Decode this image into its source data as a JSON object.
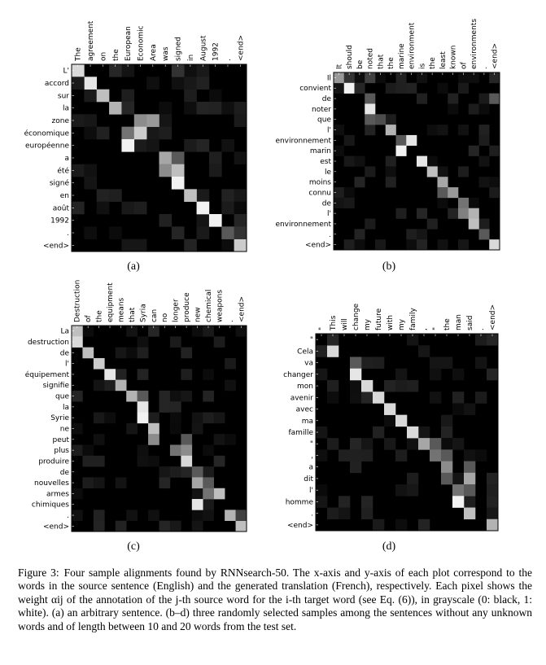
{
  "chart_data": [
    {
      "type": "heatmap",
      "label": "(a)",
      "x": [
        "The",
        "agreement",
        "on",
        "the",
        "European",
        "Economic",
        "Area",
        "was",
        "signed",
        "in",
        "August",
        "1992",
        ".",
        "<end>"
      ],
      "y": [
        "L'",
        "accord",
        "sur",
        "la",
        "zone",
        "économique",
        "européenne",
        "a",
        "été",
        "signé",
        "en",
        "août",
        "1992",
        ".",
        "<end>"
      ],
      "cells": [
        [
          0,
          0,
          0.85
        ],
        [
          1,
          1,
          0.9
        ],
        [
          2,
          2,
          0.75
        ],
        [
          3,
          3,
          0.7
        ],
        [
          3,
          4,
          0.15
        ],
        [
          4,
          5,
          0.55
        ],
        [
          4,
          6,
          0.6
        ],
        [
          5,
          4,
          0.45
        ],
        [
          5,
          5,
          0.8
        ],
        [
          6,
          4,
          0.95
        ],
        [
          7,
          7,
          0.65
        ],
        [
          7,
          8,
          0.35
        ],
        [
          8,
          7,
          0.55
        ],
        [
          8,
          8,
          0.75
        ],
        [
          9,
          8,
          0.95
        ],
        [
          10,
          9,
          0.75
        ],
        [
          11,
          10,
          0.95
        ],
        [
          12,
          11,
          0.95
        ],
        [
          13,
          12,
          0.35
        ],
        [
          14,
          13,
          0.8
        ],
        [
          13,
          13,
          0.2
        ],
        [
          0,
          3,
          0.15
        ],
        [
          0,
          8,
          0.2
        ],
        [
          1,
          0,
          0.1
        ]
      ],
      "value_range": [
        0,
        1
      ]
    },
    {
      "type": "heatmap",
      "label": "(b)",
      "x": [
        "It",
        "should",
        "be",
        "noted",
        "that",
        "the",
        "marine",
        "environment",
        "is",
        "the",
        "least",
        "known",
        "of",
        "environments",
        ".",
        "<end>"
      ],
      "y": [
        "Il",
        "convient",
        "de",
        "noter",
        "que",
        "l'",
        "environnement",
        "marin",
        "est",
        "le",
        "moins",
        "connu",
        "de",
        "l'",
        "environnement",
        ".",
        "<end>"
      ],
      "cells": [
        [
          0,
          0,
          0.6
        ],
        [
          0,
          1,
          0.2
        ],
        [
          1,
          1,
          0.95
        ],
        [
          1,
          2,
          0.15
        ],
        [
          2,
          3,
          0.35
        ],
        [
          3,
          3,
          0.9
        ],
        [
          4,
          3,
          0.35
        ],
        [
          4,
          4,
          0.3
        ],
        [
          5,
          5,
          0.7
        ],
        [
          6,
          6,
          0.35
        ],
        [
          6,
          7,
          0.9
        ],
        [
          7,
          6,
          0.95
        ],
        [
          8,
          8,
          0.9
        ],
        [
          9,
          9,
          0.75
        ],
        [
          10,
          10,
          0.65
        ],
        [
          11,
          10,
          0.35
        ],
        [
          11,
          11,
          0.6
        ],
        [
          12,
          12,
          0.45
        ],
        [
          13,
          12,
          0.5
        ],
        [
          13,
          13,
          0.7
        ],
        [
          14,
          13,
          0.75
        ],
        [
          15,
          14,
          0.35
        ],
        [
          16,
          15,
          0.85
        ],
        [
          0,
          3,
          0.25
        ],
        [
          2,
          15,
          0.35
        ],
        [
          0,
          15,
          0.15
        ]
      ],
      "value_range": [
        0,
        1
      ]
    },
    {
      "type": "heatmap",
      "label": "(c)",
      "x": [
        "Destruction",
        "of",
        "the",
        "equipment",
        "means",
        "that",
        "Syria",
        "can",
        "no",
        "longer",
        "produce",
        "new",
        "chemical",
        "weapons",
        ".",
        "<end>"
      ],
      "y": [
        "La",
        "destruction",
        "de",
        "l'",
        "équipement",
        "signifie",
        "que",
        "la",
        "Syrie",
        "ne",
        "peut",
        "plus",
        "produire",
        "de",
        "nouvelles",
        "armes",
        "chimiques",
        ".",
        "<end>"
      ],
      "cells": [
        [
          0,
          0,
          0.75
        ],
        [
          1,
          0,
          0.85
        ],
        [
          2,
          1,
          0.75
        ],
        [
          3,
          2,
          0.8
        ],
        [
          4,
          3,
          0.9
        ],
        [
          5,
          4,
          0.7
        ],
        [
          6,
          5,
          0.7
        ],
        [
          6,
          6,
          0.35
        ],
        [
          7,
          6,
          0.9
        ],
        [
          8,
          6,
          0.95
        ],
        [
          9,
          7,
          0.75
        ],
        [
          10,
          7,
          0.55
        ],
        [
          10,
          10,
          0.35
        ],
        [
          11,
          9,
          0.45
        ],
        [
          11,
          10,
          0.55
        ],
        [
          12,
          10,
          0.85
        ],
        [
          13,
          11,
          0.35
        ],
        [
          14,
          11,
          0.65
        ],
        [
          14,
          12,
          0.35
        ],
        [
          15,
          13,
          0.75
        ],
        [
          15,
          12,
          0.45
        ],
        [
          16,
          11,
          0.9
        ],
        [
          17,
          14,
          0.7
        ],
        [
          18,
          15,
          0.75
        ],
        [
          17,
          15,
          0.25
        ]
      ],
      "value_range": [
        0,
        1
      ]
    },
    {
      "type": "heatmap",
      "label": "(d)",
      "x": [
        "\"",
        "This",
        "will",
        "change",
        "my",
        "future",
        "with",
        "my",
        "family",
        ",",
        "\"",
        "the",
        "man",
        "said",
        ".",
        "<end>"
      ],
      "y": [
        "\"",
        "Cela",
        "va",
        "changer",
        "mon",
        "avenir",
        "avec",
        "ma",
        "famille",
        "\"",
        ",",
        "a",
        "dit",
        "l'",
        "homme",
        ".",
        "<end>"
      ],
      "cells": [
        [
          1,
          1,
          0.85
        ],
        [
          2,
          3,
          0.35
        ],
        [
          3,
          3,
          0.9
        ],
        [
          4,
          4,
          0.85
        ],
        [
          5,
          5,
          0.85
        ],
        [
          6,
          6,
          0.85
        ],
        [
          7,
          7,
          0.85
        ],
        [
          8,
          8,
          0.85
        ],
        [
          9,
          9,
          0.65
        ],
        [
          9,
          10,
          0.35
        ],
        [
          10,
          10,
          0.45
        ],
        [
          10,
          11,
          0.35
        ],
        [
          11,
          11,
          0.55
        ],
        [
          11,
          13,
          0.35
        ],
        [
          12,
          13,
          0.65
        ],
        [
          12,
          11,
          0.35
        ],
        [
          13,
          12,
          0.45
        ],
        [
          13,
          13,
          0.35
        ],
        [
          14,
          12,
          0.95
        ],
        [
          15,
          13,
          0.75
        ],
        [
          16,
          15,
          0.7
        ],
        [
          0,
          1,
          0.15
        ],
        [
          0,
          15,
          0.15
        ]
      ],
      "value_range": [
        0,
        1
      ]
    }
  ],
  "caption": {
    "label": "Figure 3:",
    "text": "Four sample alignments found by RNNsearch-50. The x-axis and y-axis of each plot correspond to the words in the source sentence (English) and the generated translation (French), respectively. Each pixel shows the weight αij of the annotation of the j-th source word for the i-th target word (see Eq. (6)), in grayscale (0: black, 1: white). (a) an arbitrary sentence. (b–d) three randomly selected samples among the sentences without any unknown words and of length between 10 and 20 words from the test set."
  }
}
